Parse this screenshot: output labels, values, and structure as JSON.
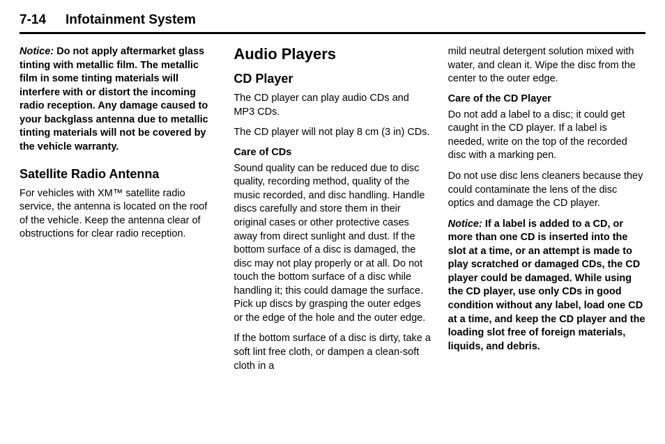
{
  "header": {
    "page_number": "7-14",
    "section_title": "Infotainment System"
  },
  "column1": {
    "notice_label": "Notice:",
    "notice_body": "Do not apply aftermarket glass tinting with metallic film. The metallic film in some tinting materials will interfere with or distort the incoming radio reception. Any damage caused to your backglass antenna due to metallic tinting materials will not be covered by the vehicle warranty.",
    "h2_satellite": "Satellite Radio Antenna",
    "satellite_body": "For vehicles with XM™ satellite radio service, the antenna is located on the roof of the vehicle. Keep the antenna clear of obstructions for clear radio reception."
  },
  "column2": {
    "h1_audio": "Audio Players",
    "h2_cd": "CD Player",
    "cd_p1": "The CD player can play audio CDs and MP3 CDs.",
    "cd_p2": "The CD player will not play 8 cm (3 in) CDs.",
    "h3_care_cds": "Care of CDs",
    "care_cds_p1": "Sound quality can be reduced due to disc quality, recording method, quality of the music recorded, and disc handling. Handle discs carefully and store them in their original cases or other protective cases away from direct sunlight and dust. If the bottom surface of a disc is damaged, the disc may not play properly or at all. Do not touch the bottom surface of a disc while handling it; this could damage the surface. Pick up discs by grasping the outer edges or the edge of the hole and the outer edge.",
    "care_cds_p2": "If the bottom surface of a disc is dirty, take a soft lint free cloth, or dampen a clean-soft cloth in a"
  },
  "column3": {
    "cont_p1": "mild neutral detergent solution mixed with water, and clean it. Wipe the disc from the center to the outer edge.",
    "h3_care_player": "Care of the CD Player",
    "care_player_p1": "Do not add a label to a disc; it could get caught in the CD player. If a label is needed, write on the top of the recorded disc with a marking pen.",
    "care_player_p2": "Do not use disc lens cleaners because they could contaminate the lens of the disc optics and damage the CD player.",
    "notice_label": "Notice:",
    "notice_body": "If a label is added to a CD, or more than one CD is inserted into the slot at a time, or an attempt is made to play scratched or damaged CDs, the CD player could be damaged. While using the CD player, use only CDs in good condition without any label, load one CD at a time, and keep the CD player and the loading slot free of foreign materials, liquids, and debris."
  }
}
